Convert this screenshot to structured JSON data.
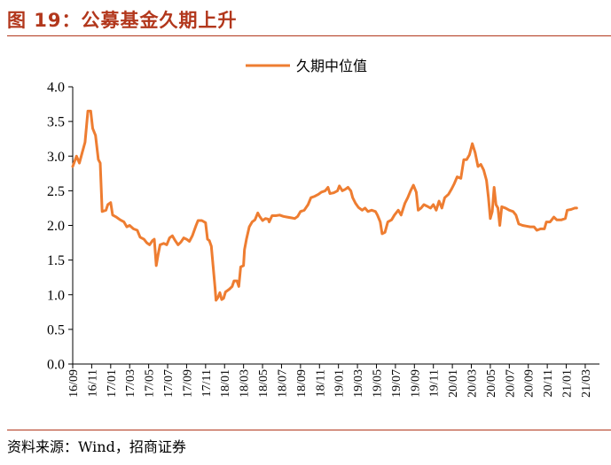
{
  "header": {
    "title": "图 19：公募基金久期上升"
  },
  "footer": {
    "source": "资料来源：Wind，招商证券"
  },
  "colors": {
    "accent": "#b2371c",
    "series": "#ee7d31"
  },
  "chart_data": {
    "type": "line",
    "title": "",
    "xlabel": "",
    "ylabel": "",
    "ylim": [
      0,
      4
    ],
    "yticks": [
      "0.0",
      "0.5",
      "1.0",
      "1.5",
      "2.0",
      "2.5",
      "3.0",
      "3.5",
      "4.0"
    ],
    "xticks": [
      "16/09",
      "16/11",
      "17/01",
      "17/03",
      "17/05",
      "17/07",
      "17/09",
      "17/11",
      "18/01",
      "18/03",
      "18/05",
      "18/07",
      "18/09",
      "18/11",
      "19/01",
      "19/03",
      "19/05",
      "19/07",
      "19/09",
      "19/11",
      "20/01",
      "20/03",
      "20/05",
      "20/07",
      "20/09",
      "20/11",
      "21/01",
      "21/03"
    ],
    "x_start": "2016-09",
    "x_end": "2021-04",
    "legend": "top-center",
    "grid": false,
    "series": [
      {
        "name": "久期中位值",
        "points": [
          [
            0.0,
            2.85
          ],
          [
            0.2,
            3.0
          ],
          [
            0.35,
            2.9
          ],
          [
            0.5,
            3.05
          ],
          [
            0.65,
            3.2
          ],
          [
            0.8,
            3.65
          ],
          [
            0.95,
            3.65
          ],
          [
            1.05,
            3.4
          ],
          [
            1.2,
            3.3
          ],
          [
            1.35,
            2.95
          ],
          [
            1.45,
            2.9
          ],
          [
            1.55,
            2.2
          ],
          [
            1.75,
            2.22
          ],
          [
            1.85,
            2.3
          ],
          [
            2.0,
            2.33
          ],
          [
            2.1,
            2.15
          ],
          [
            2.3,
            2.12
          ],
          [
            2.5,
            2.08
          ],
          [
            2.7,
            2.05
          ],
          [
            2.85,
            1.98
          ],
          [
            3.0,
            2.0
          ],
          [
            3.2,
            1.95
          ],
          [
            3.4,
            1.93
          ],
          [
            3.55,
            1.83
          ],
          [
            3.75,
            1.8
          ],
          [
            3.9,
            1.75
          ],
          [
            4.05,
            1.72
          ],
          [
            4.2,
            1.78
          ],
          [
            4.3,
            1.8
          ],
          [
            4.4,
            1.42
          ],
          [
            4.5,
            1.58
          ],
          [
            4.6,
            1.72
          ],
          [
            4.8,
            1.74
          ],
          [
            4.95,
            1.72
          ],
          [
            5.1,
            1.82
          ],
          [
            5.25,
            1.85
          ],
          [
            5.4,
            1.78
          ],
          [
            5.55,
            1.72
          ],
          [
            5.7,
            1.76
          ],
          [
            5.85,
            1.82
          ],
          [
            6.0,
            1.8
          ],
          [
            6.15,
            1.77
          ],
          [
            6.3,
            1.85
          ],
          [
            6.5,
            2.0
          ],
          [
            6.6,
            2.07
          ],
          [
            6.8,
            2.07
          ],
          [
            7.0,
            2.04
          ],
          [
            7.1,
            1.8
          ],
          [
            7.2,
            1.78
          ],
          [
            7.3,
            1.7
          ],
          [
            7.4,
            1.4
          ],
          [
            7.5,
            1.1
          ],
          [
            7.55,
            0.92
          ],
          [
            7.65,
            0.96
          ],
          [
            7.75,
            1.03
          ],
          [
            7.85,
            0.93
          ],
          [
            7.95,
            0.95
          ],
          [
            8.05,
            1.04
          ],
          [
            8.25,
            1.08
          ],
          [
            8.4,
            1.12
          ],
          [
            8.5,
            1.2
          ],
          [
            8.65,
            1.2
          ],
          [
            8.75,
            1.12
          ],
          [
            8.85,
            1.4
          ],
          [
            9.0,
            1.42
          ],
          [
            9.05,
            1.65
          ],
          [
            9.15,
            1.8
          ],
          [
            9.3,
            1.98
          ],
          [
            9.45,
            2.05
          ],
          [
            9.6,
            2.08
          ],
          [
            9.75,
            2.18
          ],
          [
            9.85,
            2.13
          ],
          [
            10.0,
            2.07
          ],
          [
            10.15,
            2.1
          ],
          [
            10.3,
            2.09
          ],
          [
            10.35,
            2.05
          ],
          [
            10.5,
            2.14
          ],
          [
            10.7,
            2.14
          ],
          [
            10.9,
            2.15
          ],
          [
            11.1,
            2.13
          ],
          [
            11.3,
            2.12
          ],
          [
            11.5,
            2.11
          ],
          [
            11.7,
            2.1
          ],
          [
            11.85,
            2.13
          ],
          [
            12.0,
            2.2
          ],
          [
            12.2,
            2.22
          ],
          [
            12.4,
            2.3
          ],
          [
            12.55,
            2.4
          ],
          [
            12.75,
            2.42
          ],
          [
            12.95,
            2.45
          ],
          [
            13.1,
            2.48
          ],
          [
            13.3,
            2.5
          ],
          [
            13.45,
            2.55
          ],
          [
            13.55,
            2.46
          ],
          [
            13.75,
            2.47
          ],
          [
            13.95,
            2.5
          ],
          [
            14.05,
            2.57
          ],
          [
            14.2,
            2.5
          ],
          [
            14.35,
            2.52
          ],
          [
            14.5,
            2.55
          ],
          [
            14.65,
            2.5
          ],
          [
            14.75,
            2.4
          ],
          [
            14.9,
            2.32
          ],
          [
            15.05,
            2.26
          ],
          [
            15.25,
            2.22
          ],
          [
            15.4,
            2.25
          ],
          [
            15.55,
            2.2
          ],
          [
            15.75,
            2.22
          ],
          [
            15.95,
            2.2
          ],
          [
            16.05,
            2.15
          ],
          [
            16.2,
            2.05
          ],
          [
            16.3,
            1.88
          ],
          [
            16.45,
            1.9
          ],
          [
            16.6,
            2.05
          ],
          [
            16.8,
            2.08
          ],
          [
            16.95,
            2.15
          ],
          [
            17.15,
            2.22
          ],
          [
            17.3,
            2.15
          ],
          [
            17.5,
            2.32
          ],
          [
            17.65,
            2.4
          ],
          [
            17.8,
            2.5
          ],
          [
            17.95,
            2.58
          ],
          [
            18.1,
            2.48
          ],
          [
            18.2,
            2.22
          ],
          [
            18.35,
            2.25
          ],
          [
            18.5,
            2.3
          ],
          [
            18.65,
            2.28
          ],
          [
            18.85,
            2.25
          ],
          [
            19.0,
            2.3
          ],
          [
            19.15,
            2.22
          ],
          [
            19.3,
            2.35
          ],
          [
            19.45,
            2.25
          ],
          [
            19.6,
            2.4
          ],
          [
            19.8,
            2.45
          ],
          [
            19.95,
            2.52
          ],
          [
            20.1,
            2.6
          ],
          [
            20.25,
            2.7
          ],
          [
            20.45,
            2.68
          ],
          [
            20.6,
            2.95
          ],
          [
            20.75,
            2.95
          ],
          [
            20.9,
            3.02
          ],
          [
            21.05,
            3.18
          ],
          [
            21.2,
            3.05
          ],
          [
            21.35,
            2.85
          ],
          [
            21.5,
            2.88
          ],
          [
            21.65,
            2.8
          ],
          [
            21.8,
            2.65
          ],
          [
            21.9,
            2.4
          ],
          [
            22.0,
            2.1
          ],
          [
            22.1,
            2.2
          ],
          [
            22.2,
            2.55
          ],
          [
            22.3,
            2.3
          ],
          [
            22.4,
            2.25
          ],
          [
            22.5,
            2.0
          ],
          [
            22.6,
            2.27
          ],
          [
            22.8,
            2.25
          ],
          [
            23.0,
            2.22
          ],
          [
            23.2,
            2.2
          ],
          [
            23.35,
            2.15
          ],
          [
            23.5,
            2.02
          ],
          [
            23.7,
            2.0
          ],
          [
            23.9,
            1.99
          ],
          [
            24.1,
            1.98
          ],
          [
            24.3,
            1.98
          ],
          [
            24.45,
            1.93
          ],
          [
            24.65,
            1.95
          ],
          [
            24.85,
            1.95
          ],
          [
            24.95,
            2.05
          ],
          [
            25.15,
            2.05
          ],
          [
            25.35,
            2.12
          ],
          [
            25.5,
            2.08
          ],
          [
            25.75,
            2.08
          ],
          [
            25.95,
            2.1
          ],
          [
            26.05,
            2.22
          ],
          [
            26.25,
            2.23
          ],
          [
            26.45,
            2.25
          ],
          [
            26.55,
            2.25
          ]
        ]
      }
    ]
  }
}
